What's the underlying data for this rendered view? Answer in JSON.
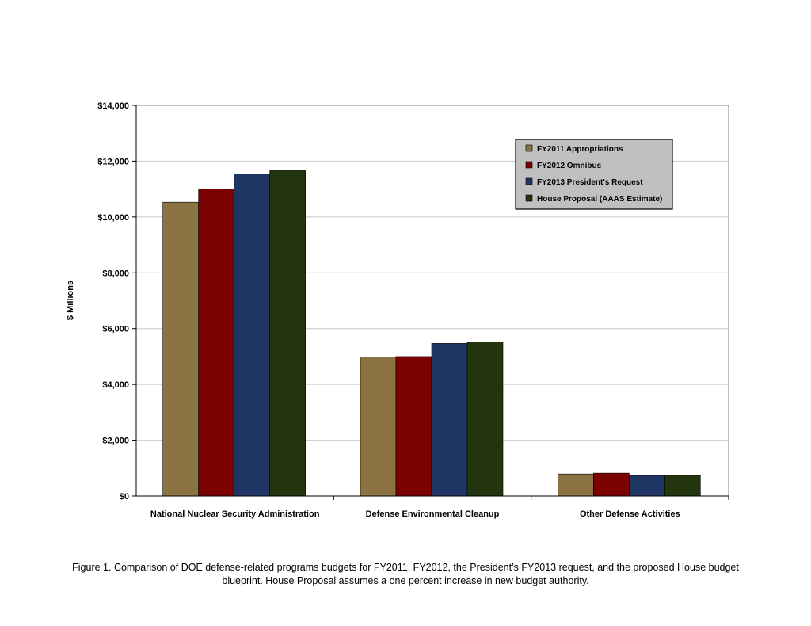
{
  "chart_data": {
    "type": "bar",
    "title": "",
    "xlabel": "",
    "ylabel": "$ Millions",
    "ylim": [
      0,
      14000
    ],
    "yticks": [
      0,
      2000,
      4000,
      6000,
      8000,
      10000,
      12000,
      14000
    ],
    "ytick_labels": [
      "$0",
      "$2,000",
      "$4,000",
      "$6,000",
      "$8,000",
      "$10,000",
      "$12,000",
      "$14,000"
    ],
    "grid": true,
    "legend_position": "top-right",
    "categories": [
      "National Nuclear Security Administration",
      "Defense Environmental Cleanup",
      "Other Defense Activities"
    ],
    "series": [
      {
        "name": "FY2011 Appropriations",
        "color": "#8b7343",
        "values": [
          10530,
          4980,
          790
        ]
      },
      {
        "name": "FY2012 Omnibus",
        "color": "#7b0000",
        "values": [
          11000,
          5000,
          820
        ]
      },
      {
        "name": "FY2013 President's Request",
        "color": "#1f3563",
        "values": [
          11540,
          5470,
          740
        ]
      },
      {
        "name": "House Proposal (AAAS Estimate)",
        "color": "#22350f",
        "values": [
          11660,
          5520,
          740
        ]
      }
    ]
  },
  "caption": {
    "line1": "Figure 1. Comparison of DOE defense-related programs budgets for FY2011, FY2012, the President’s FY2013 request, and the proposed House budget",
    "line2": "blueprint.  House Proposal assumes a one percent increase in new budget authority."
  }
}
